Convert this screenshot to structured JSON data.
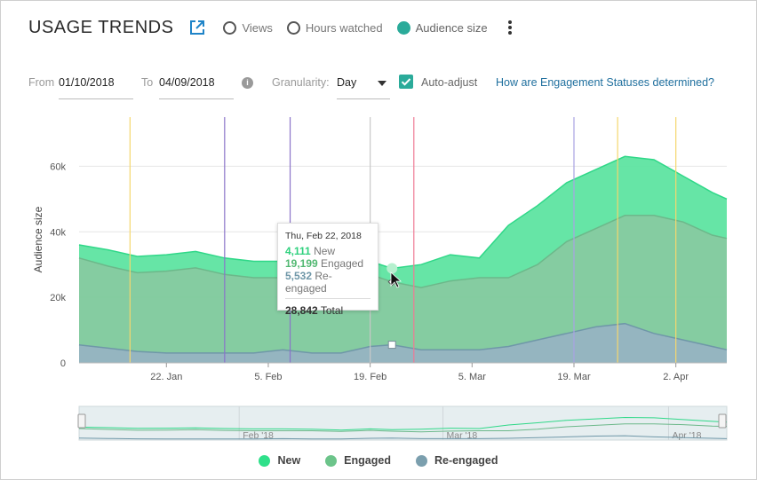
{
  "header": {
    "title": "USAGE TRENDS",
    "metrics": [
      {
        "label": "Views",
        "selected": false
      },
      {
        "label": "Hours watched",
        "selected": false
      },
      {
        "label": "Audience size",
        "selected": true
      }
    ]
  },
  "filters": {
    "from_label": "From",
    "from_value": "01/10/2018",
    "to_label": "To",
    "to_value": "04/09/2018",
    "granularity_label": "Granularity:",
    "granularity_value": "Day",
    "auto_adjust_label": "Auto-adjust",
    "auto_adjust_checked": true,
    "help_link": "How are Engagement Statuses determined?"
  },
  "tooltip": {
    "date": "Thu, Feb 22, 2018",
    "rows": [
      {
        "value": "4,111",
        "label": "New"
      },
      {
        "value": "19,199",
        "label": "Engaged"
      },
      {
        "value": "5,532",
        "label": "Re-engaged"
      }
    ],
    "total_value": "28,842",
    "total_label": "Total"
  },
  "colors": {
    "new": "#5ee4a1",
    "engaged": "#7ec99c",
    "reengaged": "#8fb1bd",
    "accent": "#2bab9a"
  },
  "chart_data": {
    "type": "area",
    "stacked": true,
    "ylabel": "Audience size",
    "y_ticks": [
      "0",
      "20k",
      "40k",
      "60k"
    ],
    "ylim": [
      0,
      75000
    ],
    "x_start": "2018-01-10",
    "x_end": "2018-04-09",
    "x_tick_labels": [
      {
        "date": "2018-01-22",
        "label": "22. Jan"
      },
      {
        "date": "2018-02-05",
        "label": "5. Feb"
      },
      {
        "date": "2018-02-19",
        "label": "19. Feb"
      },
      {
        "date": "2018-03-05",
        "label": "5. Mar"
      },
      {
        "date": "2018-03-19",
        "label": "19. Mar"
      },
      {
        "date": "2018-04-02",
        "label": "2. Apr"
      }
    ],
    "x": [
      "2018-01-10",
      "2018-01-14",
      "2018-01-18",
      "2018-01-22",
      "2018-01-26",
      "2018-01-30",
      "2018-02-03",
      "2018-02-07",
      "2018-02-11",
      "2018-02-15",
      "2018-02-19",
      "2018-02-22",
      "2018-02-26",
      "2018-03-02",
      "2018-03-06",
      "2018-03-10",
      "2018-03-14",
      "2018-03-18",
      "2018-03-22",
      "2018-03-26",
      "2018-03-30",
      "2018-04-03",
      "2018-04-07",
      "2018-04-09"
    ],
    "series": [
      {
        "name": "New",
        "values": [
          4000,
          5000,
          5000,
          5000,
          5000,
          5000,
          5000,
          5000,
          4000,
          4000,
          4000,
          4111,
          7000,
          8000,
          6000,
          16000,
          18000,
          18000,
          18000,
          18000,
          17000,
          14000,
          13000,
          12000
        ]
      },
      {
        "name": "Engaged",
        "values": [
          26500,
          25000,
          24000,
          25000,
          26000,
          24000,
          23000,
          22000,
          23000,
          21000,
          22000,
          19199,
          19000,
          21000,
          22000,
          21000,
          23000,
          28000,
          30000,
          33000,
          36000,
          36000,
          34000,
          34000
        ]
      },
      {
        "name": "Re-engaged",
        "values": [
          5500,
          4500,
          3500,
          3000,
          3000,
          3000,
          3000,
          4000,
          3000,
          3000,
          5000,
          5532,
          4000,
          4000,
          4000,
          5000,
          7000,
          9000,
          11000,
          12000,
          9000,
          7000,
          5000,
          4000
        ]
      }
    ],
    "legend_position": "bottom-center",
    "event_markers": [
      {
        "date": "2018-01-17",
        "color": "#f5d76e"
      },
      {
        "date": "2018-01-30",
        "color": "#8a73c9"
      },
      {
        "date": "2018-02-08",
        "color": "#8a73c9"
      },
      {
        "date": "2018-02-19",
        "color": "#c8c8c8"
      },
      {
        "date": "2018-02-25",
        "color": "#f07a95"
      },
      {
        "date": "2018-03-19",
        "color": "#a9a3e3"
      },
      {
        "date": "2018-03-25",
        "color": "#f5d76e"
      },
      {
        "date": "2018-04-02",
        "color": "#f5d76e"
      }
    ],
    "navigator_labels": [
      {
        "date": "2018-02-01",
        "label": "Feb '18"
      },
      {
        "date": "2018-03-01",
        "label": "Mar '18"
      },
      {
        "date": "2018-04-01",
        "label": "Apr '18"
      }
    ]
  }
}
